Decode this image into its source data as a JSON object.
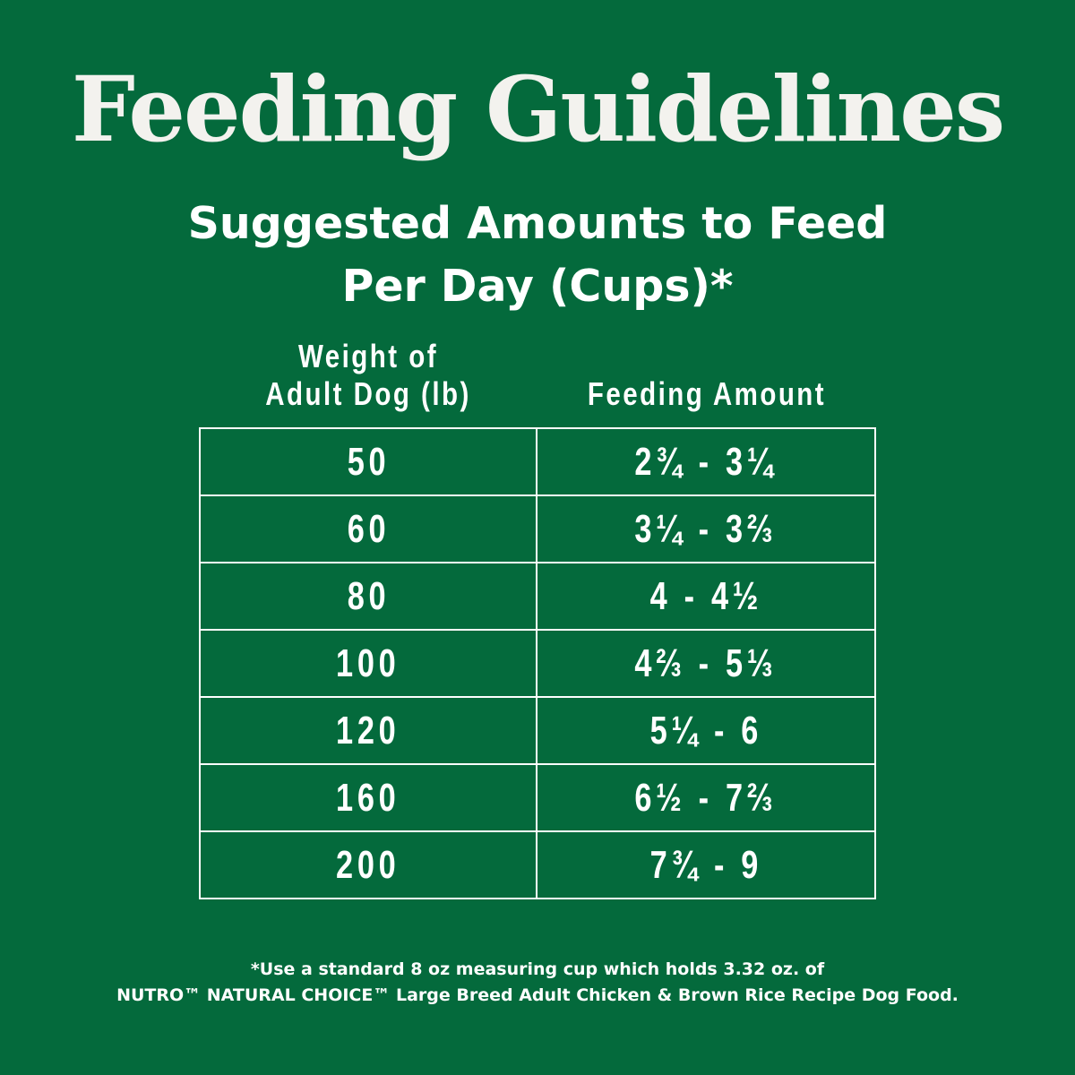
{
  "title": "Feeding Guidelines",
  "subtitle": {
    "line1": "Suggested Amounts to Feed",
    "line2": "Per Day (Cups)*"
  },
  "table": {
    "headers": {
      "weight_line1": "Weight of",
      "weight_line2": "Adult Dog (lb)",
      "amount": "Feeding Amount"
    },
    "rows": [
      {
        "weight": "50",
        "amount": "2¾ - 3¼"
      },
      {
        "weight": "60",
        "amount": "3¼ - 3⅔"
      },
      {
        "weight": "80",
        "amount": "4 - 4½"
      },
      {
        "weight": "100",
        "amount": "4⅔ - 5⅓"
      },
      {
        "weight": "120",
        "amount": "5¼ - 6"
      },
      {
        "weight": "160",
        "amount": "6½ - 7⅔"
      },
      {
        "weight": "200",
        "amount": "7¾ - 9"
      }
    ]
  },
  "footnote": {
    "line1": "*Use a standard 8 oz measuring cup which holds 3.32 oz. of",
    "line2": "NUTRO™ NATURAL CHOICE™ Large Breed Adult Chicken & Brown Rice Recipe Dog Food."
  },
  "colors": {
    "background": "#046a3c",
    "text": "#ffffff"
  }
}
